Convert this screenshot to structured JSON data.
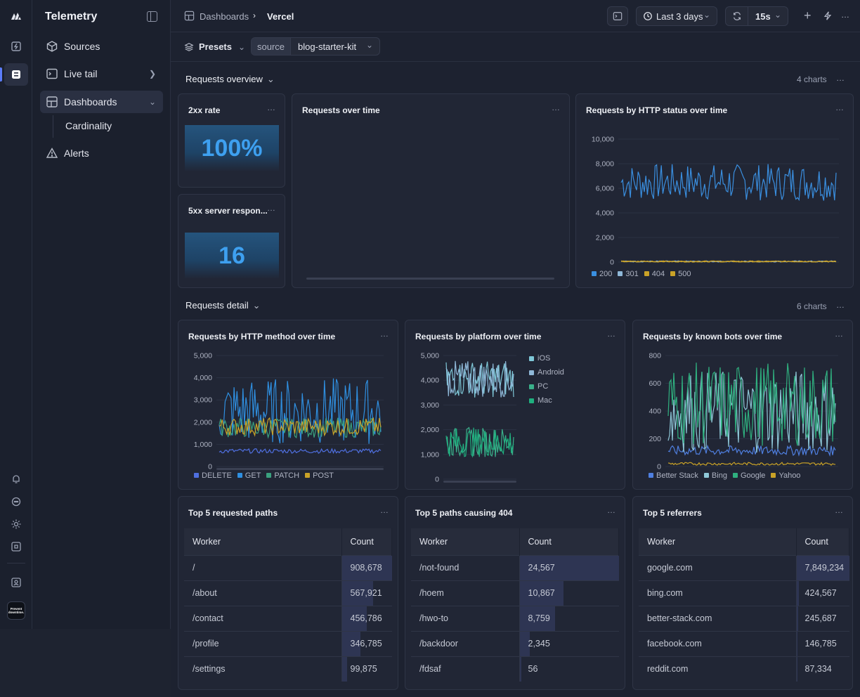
{
  "app": {
    "title": "Telemetry"
  },
  "sidebar": {
    "items": [
      {
        "label": "Sources"
      },
      {
        "label": "Live tail"
      },
      {
        "label": "Dashboards"
      },
      {
        "label": "Cardinality"
      },
      {
        "label": "Alerts"
      }
    ],
    "logo_text": "Prevent downtime."
  },
  "topbar": {
    "breadcrumb_root": "Dashboards",
    "breadcrumb_current": "Vercel",
    "time_range": "Last 3 days",
    "refresh": "15s"
  },
  "filters": {
    "presets_label": "Presets",
    "source_label": "source",
    "source_value": "blog-starter-kit"
  },
  "sections": [
    {
      "label": "Requests overview",
      "count": "4 charts"
    },
    {
      "label": "Requests detail",
      "count": "6 charts"
    }
  ],
  "panels": {
    "rate2xx": {
      "title": "2xx rate",
      "value": "100%"
    },
    "err5xx": {
      "title": "5xx server respon...",
      "value": "16"
    },
    "reqtime": {
      "title": "Requests over time"
    },
    "status": {
      "title": "Requests by HTTP status over time"
    },
    "method": {
      "title": "Requests by HTTP method over time"
    },
    "platform": {
      "title": "Requests by platform over time"
    },
    "bots": {
      "title": "Requests by known bots over time"
    },
    "paths": {
      "title": "Top 5 requested paths"
    },
    "p404": {
      "title": "Top 5 paths causing 404"
    },
    "refs": {
      "title": "Top 5 referrers"
    }
  },
  "chart_data": [
    {
      "type": "line",
      "title": "Requests by HTTP status over time",
      "ylim": [
        0,
        10000
      ],
      "yticks": [
        "10,000",
        "8,000",
        "6,000",
        "4,000",
        "2,000",
        "0"
      ],
      "legend": "bottom-left",
      "series": [
        {
          "name": "200",
          "color": "#3a8fe0",
          "range": [
            5000,
            8000
          ]
        },
        {
          "name": "301",
          "color": "#8fb8d8",
          "range": [
            0,
            100
          ]
        },
        {
          "name": "404",
          "color": "#c9a227",
          "range": [
            0,
            100
          ]
        },
        {
          "name": "500",
          "color": "#c9a227",
          "range": [
            0,
            100
          ]
        }
      ]
    },
    {
      "type": "line",
      "title": "Requests by HTTP method over time",
      "ylim": [
        0,
        5000
      ],
      "yticks": [
        "5,000",
        "4,000",
        "3,000",
        "2,000",
        "1,000",
        "0"
      ],
      "legend": "bottom-left",
      "series": [
        {
          "name": "DELETE",
          "color": "#4f6fe0",
          "range": [
            600,
            800
          ]
        },
        {
          "name": "GET",
          "color": "#2f8fe0",
          "range": [
            1000,
            4000
          ]
        },
        {
          "name": "PATCH",
          "color": "#3aa17f",
          "range": [
            1300,
            2200
          ]
        },
        {
          "name": "POST",
          "color": "#c9a227",
          "range": [
            1400,
            2200
          ]
        }
      ]
    },
    {
      "type": "line",
      "title": "Requests by platform over time",
      "ylim": [
        0,
        5000
      ],
      "yticks": [
        "5,000",
        "4,000",
        "3,000",
        "2,000",
        "1,000",
        "0"
      ],
      "legend": "right",
      "series": [
        {
          "name": "iOS",
          "color": "#7fc8d8",
          "range": [
            3300,
            4800
          ]
        },
        {
          "name": "Android",
          "color": "#8fb8d8",
          "range": [
            3300,
            4800
          ]
        },
        {
          "name": "PC",
          "color": "#3ab08a",
          "range": [
            900,
            2100
          ]
        },
        {
          "name": "Mac",
          "color": "#1fb07f",
          "range": [
            900,
            2100
          ]
        }
      ]
    },
    {
      "type": "line",
      "title": "Requests by known bots over time",
      "ylim": [
        0,
        800
      ],
      "yticks": [
        "800",
        "600",
        "400",
        "200",
        "0"
      ],
      "legend": "bottom-left",
      "series": [
        {
          "name": "Better Stack",
          "color": "#4f7fe0",
          "range": [
            80,
            150
          ]
        },
        {
          "name": "Bing",
          "color": "#8fc8d8",
          "range": [
            100,
            700
          ]
        },
        {
          "name": "Google",
          "color": "#2fb07f",
          "range": [
            150,
            750
          ]
        },
        {
          "name": "Yahoo",
          "color": "#c9a227",
          "range": [
            10,
            30
          ]
        }
      ]
    }
  ],
  "tables": {
    "header": {
      "col1": "Worker",
      "col2": "Count"
    },
    "paths": [
      {
        "k": "/",
        "v": "908,678",
        "f": 1.0
      },
      {
        "k": "/about",
        "v": "567,921",
        "f": 0.62
      },
      {
        "k": "/contact",
        "v": "456,786",
        "f": 0.5
      },
      {
        "k": "/profile",
        "v": "346,785",
        "f": 0.38
      },
      {
        "k": "/settings",
        "v": "99,875",
        "f": 0.11
      }
    ],
    "p404": [
      {
        "k": "/not-found",
        "v": "24,567",
        "f": 1.0
      },
      {
        "k": "/hoem",
        "v": "10,867",
        "f": 0.44
      },
      {
        "k": "/hwo-to",
        "v": "8,759",
        "f": 0.36
      },
      {
        "k": "/backdoor",
        "v": "2,345",
        "f": 0.1
      },
      {
        "k": "/fdsaf",
        "v": "56",
        "f": 0.0
      }
    ],
    "refs": [
      {
        "k": "google.com",
        "v": "7,849,234",
        "f": 1.0
      },
      {
        "k": "bing.com",
        "v": "424,567",
        "f": 0.05
      },
      {
        "k": "better-stack.com",
        "v": "245,687",
        "f": 0.03
      },
      {
        "k": "facebook.com",
        "v": "146,785",
        "f": 0.02
      },
      {
        "k": "reddit.com",
        "v": "87,334",
        "f": 0.01
      }
    ]
  }
}
